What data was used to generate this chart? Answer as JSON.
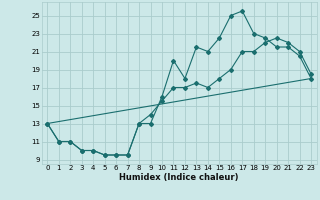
{
  "xlabel": "Humidex (Indice chaleur)",
  "bg_color": "#cce8e8",
  "grid_color": "#aacccc",
  "line_color": "#1a6e6e",
  "line1_x": [
    0,
    1,
    2,
    3,
    4,
    5,
    6,
    7,
    8,
    9,
    10,
    11,
    12,
    13,
    14,
    15,
    16,
    17,
    18,
    19,
    20,
    21,
    22,
    23
  ],
  "line1_y": [
    13,
    11,
    11,
    10,
    10,
    9.5,
    9.5,
    9.5,
    13,
    13,
    16,
    20,
    18,
    21.5,
    21,
    22.5,
    25,
    25.5,
    23,
    22.5,
    21.5,
    21.5,
    20.5,
    18
  ],
  "line2_x": [
    0,
    1,
    2,
    3,
    4,
    5,
    6,
    7,
    8,
    9,
    10,
    11,
    12,
    13,
    14,
    15,
    16,
    17,
    18,
    19,
    20,
    21,
    22,
    23
  ],
  "line2_y": [
    13,
    11,
    11,
    10,
    10,
    9.5,
    9.5,
    9.5,
    13,
    14,
    15.5,
    17,
    17,
    17.5,
    17,
    18,
    19,
    21,
    21,
    22,
    22.5,
    22,
    21,
    18.5
  ],
  "line3_x": [
    0,
    23
  ],
  "line3_y": [
    13,
    18
  ],
  "ylim": [
    8.5,
    26.5
  ],
  "yticks": [
    9,
    11,
    13,
    15,
    17,
    19,
    21,
    23,
    25
  ],
  "xlim": [
    -0.5,
    23.5
  ],
  "xticks": [
    0,
    1,
    2,
    3,
    4,
    5,
    6,
    7,
    8,
    9,
    10,
    11,
    12,
    13,
    14,
    15,
    16,
    17,
    18,
    19,
    20,
    21,
    22,
    23
  ]
}
